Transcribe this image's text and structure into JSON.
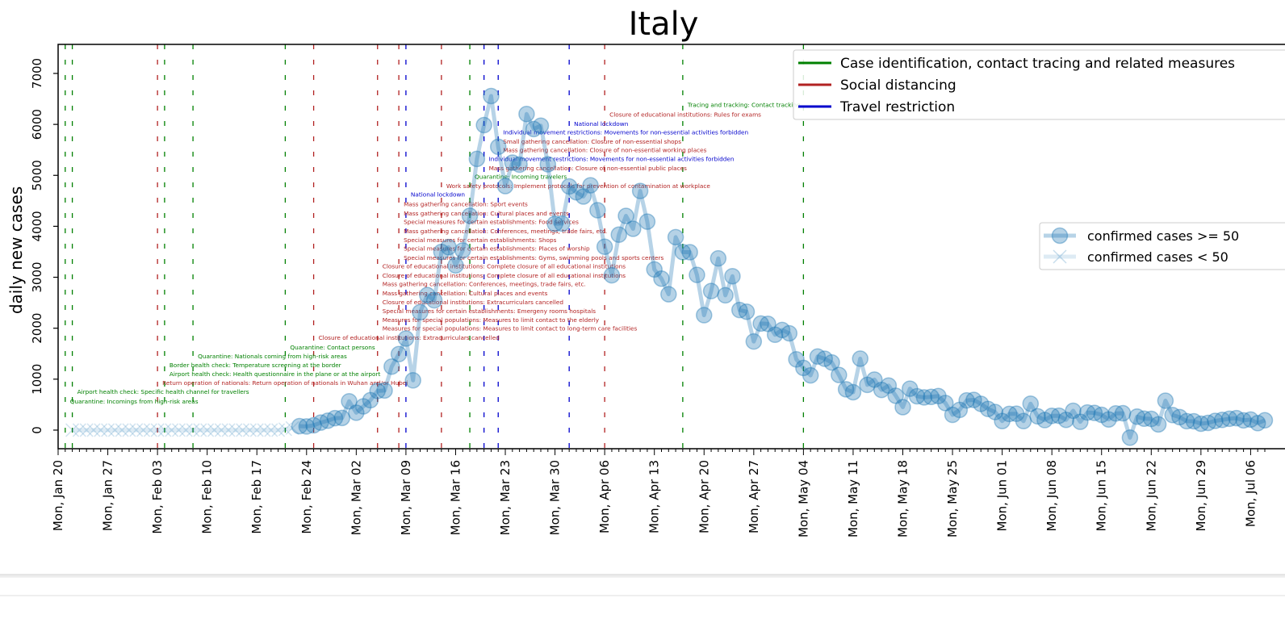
{
  "chart_data": {
    "type": "line",
    "title": "Italy",
    "xlabel": "",
    "ylabel": "daily new cases",
    "xlim": [
      "2020-01-20",
      "2020-07-08"
    ],
    "ylim": [
      -365,
      7570
    ],
    "yticks": [
      0,
      1000,
      2000,
      3000,
      4000,
      5000,
      6000,
      7000
    ],
    "xtick_labels": [
      "Mon, Jan 20",
      "Mon, Jan 27",
      "Mon, Feb 03",
      "Mon, Feb 10",
      "Mon, Feb 17",
      "Mon, Feb 24",
      "Mon, Mar 02",
      "Mon, Mar 09",
      "Mon, Mar 16",
      "Mon, Mar 23",
      "Mon, Mar 30",
      "Mon, Apr 06",
      "Mon, Apr 13",
      "Mon, Apr 20",
      "Mon, Apr 27",
      "Mon, May 04",
      "Mon, May 11",
      "Mon, May 18",
      "Mon, May 25",
      "Mon, Jun 01",
      "Mon, Jun 08",
      "Mon, Jun 15",
      "Mon, Jun 22",
      "Mon, Jun 29",
      "Mon, Jul 06"
    ],
    "grid": false,
    "colors": {
      "series": "#1f77b4",
      "case": "#008000",
      "social": "#b22222",
      "travel": "#0000cd"
    },
    "series": [
      {
        "name": "confirmed cases >= 50",
        "start": "2020-02-23",
        "values": [
          78,
          72,
          94,
          147,
          185,
          234,
          239,
          566,
          342,
          466,
          587,
          769,
          778,
          1247,
          1492,
          1797,
          977,
          2313,
          2651,
          2547,
          3497,
          3590,
          3233,
          3526,
          4207,
          5322,
          5986,
          6557,
          5560,
          4789,
          5249,
          5210,
          6203,
          5909,
          5974,
          5217,
          4050,
          4053,
          4782,
          4668,
          4585,
          4805,
          4316,
          3599,
          3039,
          3836,
          4204,
          3951,
          4694,
          4092,
          3153,
          2972,
          2667,
          3786,
          3493,
          3491,
          3047,
          2256,
          2729,
          3370,
          2646,
          3021,
          2357,
          2324,
          1739,
          2091,
          2086,
          1872,
          1965,
          1900,
          1389,
          1221,
          1075,
          1444,
          1401,
          1327,
          1083,
          802,
          744,
          1402,
          888,
          992,
          789,
          875,
          675,
          451,
          813,
          665,
          642,
          652,
          669,
          531,
          300,
          397,
          584,
          593,
          516,
          416,
          355,
          178,
          318,
          321,
          177,
          518,
          270,
          197,
          280,
          283,
          202,
          379,
          163,
          346,
          338,
          301,
          210,
          328,
          331,
          -148,
          264,
          224,
          221,
          113,
          577,
          296,
          255,
          175,
          174,
          126,
          142,
          182,
          201,
          223,
          235,
          192,
          208,
          137,
          193
        ]
      },
      {
        "name": "confirmed cases < 50",
        "start": "2020-01-22",
        "values": [
          0,
          0,
          0,
          0,
          0,
          0,
          0,
          0,
          0,
          2,
          0,
          0,
          0,
          0,
          0,
          1,
          0,
          0,
          0,
          0,
          0,
          0,
          0,
          0,
          0,
          0,
          0,
          0,
          0,
          0,
          17,
          42
        ]
      }
    ],
    "vlines": [
      {
        "date": "2020-01-21",
        "category": "case"
      },
      {
        "date": "2020-01-22",
        "category": "case"
      },
      {
        "date": "2020-02-03",
        "category": "social"
      },
      {
        "date": "2020-02-04",
        "category": "case"
      },
      {
        "date": "2020-02-08",
        "category": "case"
      },
      {
        "date": "2020-02-21",
        "category": "case"
      },
      {
        "date": "2020-02-25",
        "category": "social"
      },
      {
        "date": "2020-03-05",
        "category": "social"
      },
      {
        "date": "2020-03-08",
        "category": "social"
      },
      {
        "date": "2020-03-09",
        "category": "travel"
      },
      {
        "date": "2020-03-14",
        "category": "social"
      },
      {
        "date": "2020-03-18",
        "category": "case"
      },
      {
        "date": "2020-03-20",
        "category": "travel"
      },
      {
        "date": "2020-03-22",
        "category": "travel"
      },
      {
        "date": "2020-04-01",
        "category": "travel"
      },
      {
        "date": "2020-04-06",
        "category": "social"
      },
      {
        "date": "2020-04-17",
        "category": "case"
      },
      {
        "date": "2020-05-04",
        "category": "case"
      }
    ],
    "annotations": [
      {
        "date": "2020-01-21",
        "y": 570,
        "category": "case",
        "text": "Quarantine: Incomings from high-risk areas"
      },
      {
        "date": "2020-01-22",
        "y": 760,
        "category": "case",
        "text": "Airport health check: Specific health channel for travellers"
      },
      {
        "date": "2020-02-03",
        "y": 935,
        "category": "social",
        "text": "Return operation of nationals: Return operation of nationals in Wuhan and/or Hubei"
      },
      {
        "date": "2020-02-04",
        "y": 1110,
        "category": "case",
        "text": "Airport health check: Health questionnaire in the plane or at the airport"
      },
      {
        "date": "2020-02-04",
        "y": 1285,
        "category": "case",
        "text": "Border health check: Temperature screening at the border"
      },
      {
        "date": "2020-02-08",
        "y": 1460,
        "category": "case",
        "text": "Quarantine: Nationals coming from high-risk areas"
      },
      {
        "date": "2020-02-21",
        "y": 1630,
        "category": "case",
        "text": "Quarantine: Contact persons"
      },
      {
        "date": "2020-02-25",
        "y": 1820,
        "category": "social",
        "text": "Closure of educational institutions: Extracurriculars cancelled"
      },
      {
        "date": "2020-03-05",
        "y": 2000,
        "category": "social",
        "text": "Measures for special populations: Measures to limit contact to long-term care facilities"
      },
      {
        "date": "2020-03-05",
        "y": 2170,
        "category": "social",
        "text": "Measures for special populations: Measures to limit contact to the elderly"
      },
      {
        "date": "2020-03-05",
        "y": 2345,
        "category": "social",
        "text": "Special measures for certain establishments: Emergeny rooms hospitals"
      },
      {
        "date": "2020-03-05",
        "y": 2520,
        "category": "social",
        "text": "Closure of educational institutions: Extracurriculars cancelled"
      },
      {
        "date": "2020-03-05",
        "y": 2690,
        "category": "social",
        "text": "Mass gathering cancellation: Cultural places and events"
      },
      {
        "date": "2020-03-05",
        "y": 2870,
        "category": "social",
        "text": "Mass gathering cancellation: Conferences, meetings, trade fairs, etc."
      },
      {
        "date": "2020-03-05",
        "y": 3040,
        "category": "social",
        "text": "Closure of educational institutions: Complete closure of all educational institutions"
      },
      {
        "date": "2020-03-05",
        "y": 3220,
        "category": "social",
        "text": "Closure of educational institutions: Complete closure of all educational institutions"
      },
      {
        "date": "2020-03-08",
        "y": 3390,
        "category": "social",
        "text": "Special measures for certain establishments: Gyms, swimming pools and sports centers"
      },
      {
        "date": "2020-03-08",
        "y": 3570,
        "category": "social",
        "text": "Special measures for certain establishments: Places of worship"
      },
      {
        "date": "2020-03-08",
        "y": 3740,
        "category": "social",
        "text": "Special measures for certain establishments: Shops"
      },
      {
        "date": "2020-03-08",
        "y": 3910,
        "category": "social",
        "text": "Mass gathering cancellation: Conferences, meetings, trade fairs, etc."
      },
      {
        "date": "2020-03-08",
        "y": 4090,
        "category": "social",
        "text": "Special measures for certain establishments: Food services"
      },
      {
        "date": "2020-03-08",
        "y": 4260,
        "category": "social",
        "text": "Mass gathering cancellation: Cultural places and events"
      },
      {
        "date": "2020-03-08",
        "y": 4440,
        "category": "social",
        "text": "Mass gathering cancellation: Sport events"
      },
      {
        "date": "2020-03-09",
        "y": 4630,
        "category": "travel",
        "text": "National lockdown"
      },
      {
        "date": "2020-03-14",
        "y": 4800,
        "category": "social",
        "text": "Work safety protocols: Implement protocols for prevention of contamination at workplace"
      },
      {
        "date": "2020-03-18",
        "y": 4980,
        "category": "case",
        "text": "Quarantine: Incoming travelers"
      },
      {
        "date": "2020-03-20",
        "y": 5150,
        "category": "social",
        "text": "Mass gathering cancellation: Closure of non-essential public places"
      },
      {
        "date": "2020-03-20",
        "y": 5325,
        "category": "travel",
        "text": "Individual movement restrictions: Movements for non-essential activities forbidden"
      },
      {
        "date": "2020-03-22",
        "y": 5500,
        "category": "social",
        "text": "Mass gathering cancellation: Closure of non-essential working places"
      },
      {
        "date": "2020-03-22",
        "y": 5670,
        "category": "social",
        "text": "Small gathering cancellation: Closure of non-essential shops"
      },
      {
        "date": "2020-03-22",
        "y": 5850,
        "category": "travel",
        "text": "Individual movement restrictions: Movements for non-essential activities forbidden"
      },
      {
        "date": "2020-04-01",
        "y": 6020,
        "category": "travel",
        "text": "National lockdown"
      },
      {
        "date": "2020-04-06",
        "y": 6200,
        "category": "social",
        "text": "Closure of educational institutions: Rules for exams"
      },
      {
        "date": "2020-04-17",
        "y": 6390,
        "category": "case",
        "text": "Tracing and tracking: Contact tracking"
      }
    ],
    "legend_categories": {
      "placement": "top-right",
      "entries": [
        {
          "category": "case",
          "label": "Case identification, contact tracing and related measures"
        },
        {
          "category": "social",
          "label": "Social distancing"
        },
        {
          "category": "travel",
          "label": "Travel restriction"
        }
      ]
    },
    "legend_series": {
      "placement": "center-right",
      "entries": [
        {
          "marker": "circle",
          "label": "confirmed cases >= 50"
        },
        {
          "marker": "x",
          "label": "confirmed cases < 50"
        }
      ]
    }
  }
}
